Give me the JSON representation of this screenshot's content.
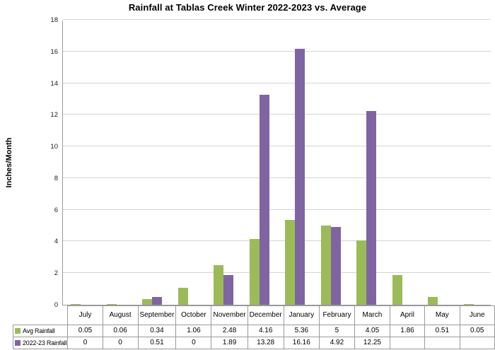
{
  "chart_data": {
    "type": "bar",
    "title": "Rainfall at Tablas Creek Winter 2022-2023 vs. Average",
    "xlabel": "",
    "ylabel": "Inches/Month",
    "categories": [
      "July",
      "August",
      "September",
      "October",
      "November",
      "December",
      "January",
      "February",
      "March",
      "April",
      "May",
      "June"
    ],
    "series": [
      {
        "name": "Avg Rainfall",
        "color": "#9BBB59",
        "values": [
          0.05,
          0.06,
          0.34,
          1.06,
          2.48,
          4.16,
          5.36,
          5,
          4.05,
          1.86,
          0.51,
          0.05
        ]
      },
      {
        "name": "2022-23 Rainfall",
        "color": "#8064A2",
        "values": [
          0,
          0,
          0.51,
          0,
          1.89,
          13.28,
          16.16,
          4.92,
          12.25,
          null,
          null,
          null
        ]
      }
    ],
    "ylim": [
      0,
      18
    ],
    "ytick_step": 2,
    "grid": true,
    "legend_position": "data-table-left-column"
  },
  "data_table": {
    "corner_label": "",
    "rows": [
      {
        "label": "Avg Rainfall",
        "key_color": "#9BBB59",
        "cells": [
          "0.05",
          "0.06",
          "0.34",
          "1.06",
          "2.48",
          "4.16",
          "5.36",
          "5",
          "4.05",
          "1.86",
          "0.51",
          "0.05"
        ]
      },
      {
        "label": "2022-23 Rainfall",
        "key_color": "#8064A2",
        "cells": [
          "0",
          "0",
          "0.51",
          "0",
          "1.89",
          "13.28",
          "16.16",
          "4.92",
          "12.25",
          "",
          "",
          ""
        ]
      }
    ]
  },
  "colors": {
    "background": "#FFFFFF",
    "grid_line": "#D4D4D4",
    "axis_line": "#9A9A9A",
    "table_border": "#9A9A9A",
    "text": "#000000",
    "series_green": "#9BBB59",
    "series_purple": "#8064A2"
  },
  "layout_hints": {
    "y_ticks": [
      0,
      2,
      4,
      6,
      8,
      10,
      12,
      14,
      16,
      18
    ]
  }
}
